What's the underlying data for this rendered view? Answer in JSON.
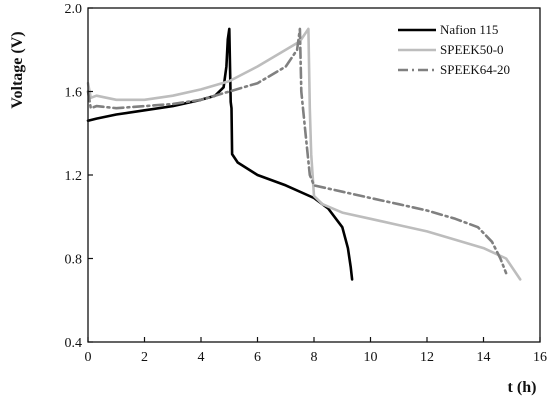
{
  "chart_data": {
    "type": "line",
    "title": "",
    "xlabel": "t (h)",
    "ylabel": "Voltage (V)",
    "xlim": [
      0,
      16
    ],
    "ylim": [
      0.4,
      2.0
    ],
    "xticks": [
      "0",
      "2",
      "4",
      "6",
      "8",
      "10",
      "12",
      "14",
      "16"
    ],
    "yticks": [
      "0.4",
      "0.8",
      "1.2",
      "1.6",
      "2.0"
    ],
    "grid": false,
    "legend_position": "top-right",
    "series": [
      {
        "name": "Nafion 115",
        "color": "#000000",
        "style": "solid",
        "points": [
          [
            0,
            1.46
          ],
          [
            0.3,
            1.47
          ],
          [
            1,
            1.49
          ],
          [
            2,
            1.51
          ],
          [
            3,
            1.53
          ],
          [
            4,
            1.56
          ],
          [
            4.5,
            1.58
          ],
          [
            4.8,
            1.62
          ],
          [
            4.9,
            1.72
          ],
          [
            4.95,
            1.85
          ],
          [
            5.0,
            1.9
          ],
          [
            5.03,
            1.7
          ],
          [
            5.05,
            1.55
          ],
          [
            5.08,
            1.52
          ],
          [
            5.1,
            1.3
          ],
          [
            5.3,
            1.26
          ],
          [
            6,
            1.2
          ],
          [
            7,
            1.15
          ],
          [
            8,
            1.09
          ],
          [
            8.5,
            1.04
          ],
          [
            9,
            0.95
          ],
          [
            9.2,
            0.85
          ],
          [
            9.3,
            0.76
          ],
          [
            9.35,
            0.7
          ]
        ]
      },
      {
        "name": "SPEEK50-0",
        "color": "#bdbdbd",
        "style": "solid",
        "points": [
          [
            0,
            1.64
          ],
          [
            0.1,
            1.57
          ],
          [
            0.3,
            1.58
          ],
          [
            1,
            1.56
          ],
          [
            2,
            1.56
          ],
          [
            3,
            1.58
          ],
          [
            4,
            1.61
          ],
          [
            5,
            1.65
          ],
          [
            6,
            1.72
          ],
          [
            7,
            1.8
          ],
          [
            7.5,
            1.84
          ],
          [
            7.8,
            1.9
          ],
          [
            7.85,
            1.52
          ],
          [
            7.9,
            1.3
          ],
          [
            8,
            1.1
          ],
          [
            8.3,
            1.06
          ],
          [
            9,
            1.02
          ],
          [
            10,
            0.99
          ],
          [
            11,
            0.96
          ],
          [
            12,
            0.93
          ],
          [
            13,
            0.89
          ],
          [
            14,
            0.85
          ],
          [
            14.8,
            0.8
          ],
          [
            15.3,
            0.7
          ]
        ]
      },
      {
        "name": "SPEEK64-20",
        "color": "#808080",
        "style": "dashdot",
        "points": [
          [
            0,
            1.6
          ],
          [
            0.1,
            1.52
          ],
          [
            0.3,
            1.53
          ],
          [
            1,
            1.52
          ],
          [
            2,
            1.53
          ],
          [
            3,
            1.54
          ],
          [
            4,
            1.56
          ],
          [
            5,
            1.6
          ],
          [
            6,
            1.64
          ],
          [
            7,
            1.72
          ],
          [
            7.4,
            1.8
          ],
          [
            7.5,
            1.9
          ],
          [
            7.55,
            1.6
          ],
          [
            7.7,
            1.4
          ],
          [
            7.85,
            1.2
          ],
          [
            8,
            1.15
          ],
          [
            9,
            1.12
          ],
          [
            10,
            1.09
          ],
          [
            11,
            1.06
          ],
          [
            12,
            1.03
          ],
          [
            13,
            0.99
          ],
          [
            13.8,
            0.95
          ],
          [
            14.3,
            0.88
          ],
          [
            14.6,
            0.8
          ],
          [
            14.8,
            0.73
          ]
        ]
      }
    ]
  }
}
